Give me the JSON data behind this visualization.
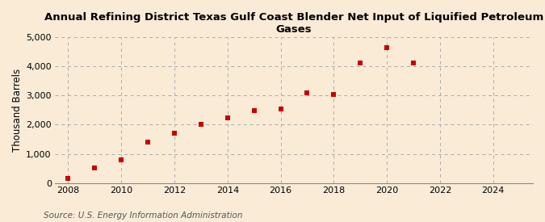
{
  "title": "Annual Refining District Texas Gulf Coast Blender Net Input of Liquified Petroleum Gases",
  "ylabel": "Thousand Barrels",
  "source": "Source: U.S. Energy Information Administration",
  "background_color": "#faebd7",
  "marker_color": "#cc0000",
  "years": [
    2008,
    2009,
    2010,
    2011,
    2012,
    2013,
    2014,
    2015,
    2016,
    2017,
    2018,
    2019,
    2020,
    2021
  ],
  "values": [
    150,
    510,
    780,
    1400,
    1700,
    2020,
    2230,
    2480,
    2530,
    3090,
    3040,
    4130,
    4660,
    4130
  ],
  "xlim": [
    2007.5,
    2025.5
  ],
  "ylim": [
    0,
    5000
  ],
  "yticks": [
    0,
    1000,
    2000,
    3000,
    4000,
    5000
  ],
  "xticks": [
    2008,
    2010,
    2012,
    2014,
    2016,
    2018,
    2020,
    2022,
    2024
  ],
  "title_fontsize": 9.5,
  "label_fontsize": 8.5,
  "tick_fontsize": 8,
  "source_fontsize": 7.5
}
